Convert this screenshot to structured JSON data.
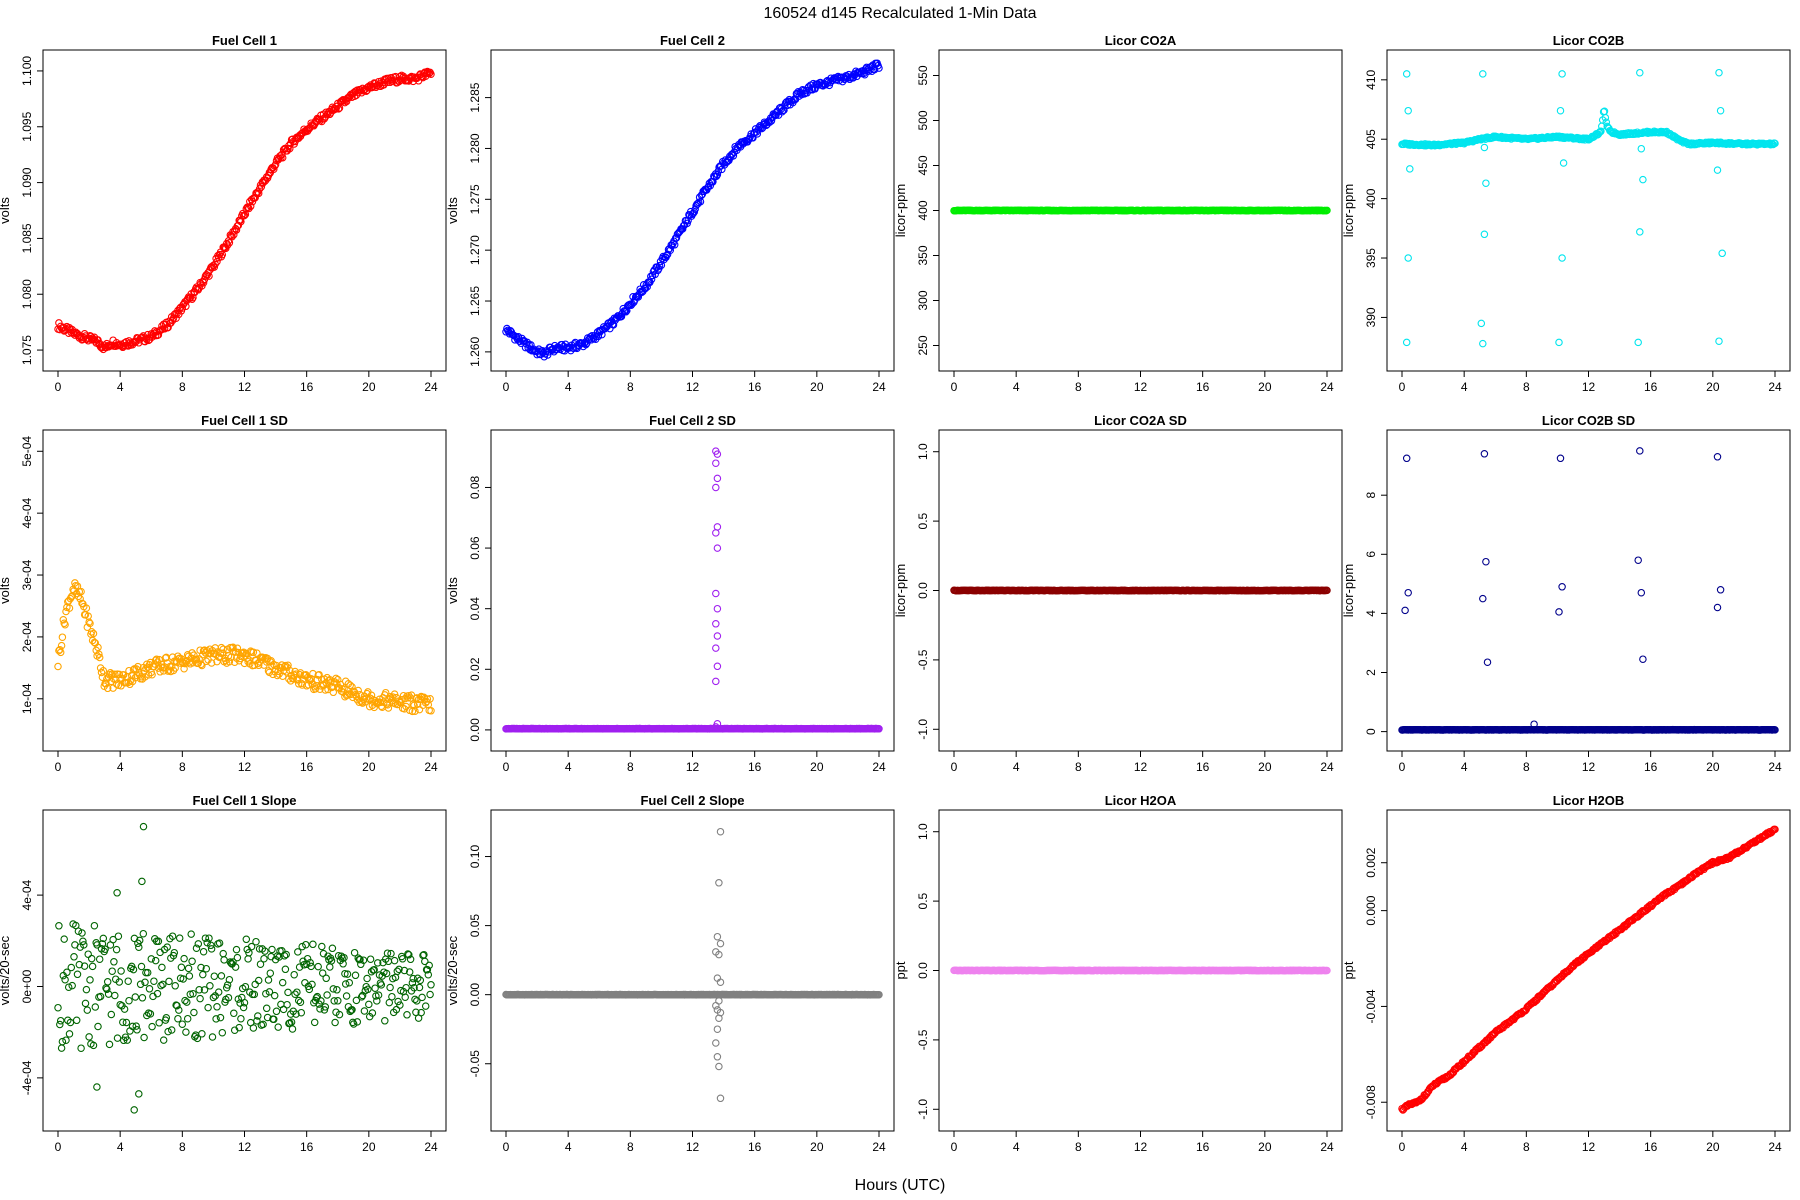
{
  "figure": {
    "title": "160524   d145   Recalculated 1-Min Data",
    "xlabel": "Hours (UTC)"
  },
  "chart_data": [
    {
      "type": "scatter",
      "title": "Fuel Cell 1",
      "ylabel": "volts",
      "color": "#ff0000",
      "xlim": [
        0,
        24
      ],
      "ylim": [
        1.0742,
        1.1008
      ],
      "xticks": [
        "0",
        "4",
        "8",
        "12",
        "16",
        "20",
        "24"
      ],
      "yticks": [
        "1.075",
        "1.080",
        "1.085",
        "1.090",
        "1.095",
        "1.100"
      ],
      "ytick_values": [
        1.075,
        1.08,
        1.085,
        1.09,
        1.095,
        1.1
      ],
      "series": [
        {
          "x": [
            0,
            1,
            2,
            2.5,
            3,
            3.5,
            4,
            5,
            6,
            7,
            8,
            9,
            10,
            11,
            12,
            13,
            14,
            15,
            16,
            17,
            18,
            19,
            20,
            21,
            22,
            23,
            23.5,
            24
          ],
          "y": [
            1.0772,
            1.0765,
            1.076,
            1.0758,
            1.0752,
            1.0757,
            1.0755,
            1.0758,
            1.0762,
            1.0772,
            1.0788,
            1.0805,
            1.0825,
            1.0848,
            1.0872,
            1.0895,
            1.0917,
            1.0935,
            1.0948,
            1.0958,
            1.0968,
            1.0978,
            1.0985,
            1.099,
            1.0993,
            1.0993,
            1.0996,
            1.0998
          ]
        }
      ]
    },
    {
      "type": "scatter",
      "title": "Fuel Cell 2",
      "ylabel": "volts",
      "color": "#0000ff",
      "xlim": [
        0,
        24
      ],
      "ylim": [
        1.2593,
        1.2885
      ],
      "xticks": [
        "0",
        "4",
        "8",
        "12",
        "16",
        "20",
        "24"
      ],
      "yticks": [
        "1.260",
        "1.265",
        "1.270",
        "1.275",
        "1.280",
        "1.285"
      ],
      "ytick_values": [
        1.26,
        1.265,
        1.27,
        1.275,
        1.28,
        1.285
      ],
      "series": [
        {
          "x": [
            0,
            1,
            2,
            2.5,
            3,
            3.5,
            4,
            5,
            6,
            7,
            8,
            9,
            10,
            11,
            12,
            13,
            14,
            15,
            16,
            17,
            18,
            19,
            20,
            21,
            22,
            23,
            24
          ],
          "y": [
            1.2622,
            1.261,
            1.26,
            1.2598,
            1.2603,
            1.2604,
            1.2604,
            1.2608,
            1.2618,
            1.263,
            1.2648,
            1.2665,
            1.2688,
            1.2712,
            1.2738,
            1.2762,
            1.2785,
            1.2803,
            1.2815,
            1.2828,
            1.2842,
            1.2855,
            1.2862,
            1.2866,
            1.287,
            1.2875,
            1.2882
          ]
        }
      ]
    },
    {
      "type": "scatter",
      "title": "Licor CO2A",
      "ylabel": "licor-ppm",
      "color": "#00ee00",
      "xlim": [
        0,
        24
      ],
      "ylim": [
        235,
        565
      ],
      "xticks": [
        "0",
        "4",
        "8",
        "12",
        "16",
        "20",
        "24"
      ],
      "yticks": [
        "250",
        "300",
        "350",
        "400",
        "450",
        "500",
        "550"
      ],
      "ytick_values": [
        250,
        300,
        350,
        400,
        450,
        500,
        550
      ],
      "series": [
        {
          "x": [
            0,
            24
          ],
          "y": [
            400,
            400
          ]
        }
      ]
    },
    {
      "type": "scatter",
      "title": "Licor CO2B",
      "ylabel": "licor-ppm",
      "color": "#00e5ee",
      "xlim": [
        0,
        24
      ],
      "ylim": [
        386.5,
        411.5
      ],
      "xticks": [
        "0",
        "4",
        "8",
        "12",
        "16",
        "20",
        "24"
      ],
      "yticks": [
        "390",
        "395",
        "400",
        "405",
        "410"
      ],
      "ytick_values": [
        390,
        395,
        400,
        405,
        410
      ],
      "series": [
        {
          "x": [
            0,
            2,
            4,
            5,
            6,
            8,
            10,
            12,
            12.8,
            13,
            13.2,
            13.5,
            14,
            16,
            17,
            18,
            18.5,
            20,
            22,
            24
          ],
          "y": [
            404.6,
            404.5,
            404.7,
            405.0,
            405.2,
            405.0,
            405.2,
            405.0,
            405.6,
            407.5,
            406.0,
            405.6,
            405.4,
            405.6,
            405.6,
            404.8,
            404.6,
            404.7,
            404.6,
            404.6
          ]
        }
      ],
      "outliers": {
        "x": [
          0.3,
          0.4,
          0.5,
          0.4,
          0.3,
          5.2,
          5.3,
          5.4,
          5.3,
          5.1,
          5.2,
          10.3,
          10.2,
          10.4,
          10.3,
          10.1,
          15.3,
          15.4,
          15.5,
          15.3,
          15.2,
          20.4,
          20.5,
          20.3,
          20.6,
          20.4
        ],
        "y": [
          410.5,
          407.4,
          402.5,
          395.0,
          387.9,
          410.5,
          404.3,
          401.3,
          397.0,
          389.5,
          387.8,
          410.5,
          407.4,
          403.0,
          395.0,
          387.9,
          410.6,
          404.2,
          401.6,
          397.2,
          387.9,
          410.6,
          407.4,
          402.4,
          395.4,
          388.0
        ]
      }
    },
    {
      "type": "scatter",
      "title": "Fuel Cell 1 SD",
      "ylabel": "volts",
      "color": "#ffa500",
      "xlim": [
        0,
        24
      ],
      "ylim": [
        3.5e-05,
        0.000515
      ],
      "xticks": [
        "0",
        "4",
        "8",
        "12",
        "16",
        "20",
        "24"
      ],
      "yticks": [
        "1e-04",
        "2e-04",
        "3e-04",
        "4e-04",
        "5e-04"
      ],
      "ytick_values": [
        0.0001,
        0.0002,
        0.0003,
        0.0004,
        0.0005
      ],
      "series": [
        {
          "x": [
            0,
            0.5,
            1,
            1.5,
            2,
            2.5,
            3,
            4,
            6,
            8,
            10,
            12,
            14,
            16,
            18,
            19,
            20,
            22,
            24
          ],
          "y": [
            0.00016,
            0.00024,
            0.00028,
            0.00026,
            0.00022,
            0.00018,
            0.00013,
            0.00013,
            0.00015,
            0.00016,
            0.00017,
            0.00017,
            0.00015,
            0.00013,
            0.00012,
            0.00011,
            0.0001,
            9.5e-05,
            9e-05
          ]
        }
      ]
    },
    {
      "type": "scatter",
      "title": "Fuel Cell 2 SD",
      "ylabel": "volts",
      "color": "#a020f0",
      "xlim": [
        0,
        24
      ],
      "ylim": [
        -0.003,
        0.095
      ],
      "xticks": [
        "0",
        "4",
        "8",
        "12",
        "16",
        "20",
        "24"
      ],
      "yticks": [
        "0.00",
        "0.02",
        "0.04",
        "0.06",
        "0.08"
      ],
      "ytick_values": [
        0.0,
        0.02,
        0.04,
        0.06,
        0.08
      ],
      "series": [
        {
          "x": [
            0,
            24
          ],
          "y": [
            0.0004,
            0.0004
          ]
        }
      ],
      "outliers": {
        "x": [
          13.5,
          13.6,
          13.5,
          13.6,
          13.5,
          13.6,
          13.5,
          13.6,
          13.5,
          13.6,
          13.5,
          13.6,
          13.5,
          13.6,
          13.5,
          13.6,
          13.5
        ],
        "y": [
          0.092,
          0.091,
          0.088,
          0.083,
          0.08,
          0.067,
          0.065,
          0.06,
          0.045,
          0.04,
          0.035,
          0.031,
          0.027,
          0.021,
          0.016,
          0.002,
          0.001
        ]
      }
    },
    {
      "type": "scatter",
      "title": "Licor CO2A SD",
      "ylabel": "licor-ppm",
      "color": "#8b0000",
      "xlim": [
        0,
        24
      ],
      "ylim": [
        -1.07,
        1.07
      ],
      "xticks": [
        "0",
        "4",
        "8",
        "12",
        "16",
        "20",
        "24"
      ],
      "yticks": [
        "-1.0",
        "-0.5",
        "0.0",
        "0.5",
        "1.0"
      ],
      "ytick_values": [
        -1.0,
        -0.5,
        0.0,
        0.5,
        1.0
      ],
      "series": [
        {
          "x": [
            0,
            24
          ],
          "y": [
            0,
            0
          ]
        }
      ]
    },
    {
      "type": "scatter",
      "title": "Licor CO2B SD",
      "ylabel": "licor-ppm",
      "color": "#00008b",
      "xlim": [
        0,
        24
      ],
      "ylim": [
        -0.25,
        9.8
      ],
      "xticks": [
        "0",
        "4",
        "8",
        "12",
        "16",
        "20",
        "24"
      ],
      "yticks": [
        "0",
        "2",
        "4",
        "6",
        "8"
      ],
      "ytick_values": [
        0,
        2,
        4,
        6,
        8
      ],
      "series": [
        {
          "x": [
            0,
            24
          ],
          "y": [
            0.06,
            0.06
          ]
        }
      ],
      "outliers": {
        "x": [
          0.3,
          0.4,
          0.2,
          5.3,
          5.2,
          5.4,
          5.5,
          10.2,
          10.3,
          10.1,
          8.5,
          15.3,
          15.4,
          15.2,
          15.5,
          20.3,
          20.5,
          20.3
        ],
        "y": [
          9.25,
          4.7,
          4.1,
          9.4,
          4.5,
          5.75,
          2.35,
          9.25,
          4.9,
          4.05,
          0.25,
          9.5,
          4.7,
          5.8,
          2.45,
          9.3,
          4.8,
          4.2
        ]
      }
    },
    {
      "type": "scatter",
      "title": "Fuel Cell 1 Slope",
      "ylabel": "volts/20-sec",
      "color": "#006400",
      "xlim": [
        0,
        24
      ],
      "ylim": [
        -0.00058,
        0.00072
      ],
      "xticks": [
        "0",
        "4",
        "8",
        "12",
        "16",
        "20",
        "24"
      ],
      "yticks": [
        "-4e-04",
        "0e+00",
        "4e-04"
      ],
      "ytick_values": [
        -0.0004,
        0.0,
        0.0004
      ],
      "series": [
        {
          "x": [
            0,
            24
          ],
          "y": [
            0,
            0
          ]
        }
      ],
      "outliers": {
        "x": [
          5.5,
          5.4,
          4.9,
          5.2,
          2.5,
          3.8
        ],
        "y": [
          0.0007,
          0.00046,
          -0.00054,
          -0.00047,
          -0.00044,
          0.00041
        ]
      }
    },
    {
      "type": "scatter",
      "title": "Fuel Cell 2 Slope",
      "ylabel": "volts/20-sec",
      "color": "#808080",
      "xlim": [
        0,
        24
      ],
      "ylim": [
        -0.09,
        0.125
      ],
      "xticks": [
        "0",
        "4",
        "8",
        "12",
        "16",
        "20",
        "24"
      ],
      "yticks": [
        "-0.05",
        "0.00",
        "0.05",
        "0.10"
      ],
      "ytick_values": [
        -0.05,
        0.0,
        0.05,
        0.1
      ],
      "series": [
        {
          "x": [
            0,
            24
          ],
          "y": [
            0,
            0
          ]
        }
      ],
      "outliers": {
        "x": [
          13.8,
          13.7,
          13.6,
          13.8,
          13.5,
          13.7,
          13.6,
          13.8,
          13.7,
          13.5,
          13.6,
          13.8,
          13.7,
          13.6,
          13.5,
          13.6,
          13.7,
          13.8
        ],
        "y": [
          0.118,
          0.081,
          0.042,
          0.037,
          0.031,
          0.029,
          0.012,
          0.009,
          -0.0045,
          -0.008,
          -0.011,
          -0.013,
          -0.017,
          -0.025,
          -0.035,
          -0.045,
          -0.052,
          -0.075
        ]
      }
    },
    {
      "type": "scatter",
      "title": "Licor H2OA",
      "ylabel": "ppt",
      "color": "#ee82ee",
      "xlim": [
        0,
        24
      ],
      "ylim": [
        -1.07,
        1.07
      ],
      "xticks": [
        "0",
        "4",
        "8",
        "12",
        "16",
        "20",
        "24"
      ],
      "yticks": [
        "-1.0",
        "-0.5",
        "0.0",
        "0.5",
        "1.0"
      ],
      "ytick_values": [
        -1.0,
        -0.5,
        0.0,
        0.5,
        1.0
      ],
      "series": [
        {
          "x": [
            0,
            24
          ],
          "y": [
            0,
            0
          ]
        }
      ]
    },
    {
      "type": "scatter",
      "title": "Licor H2OB",
      "ylabel": "ppt",
      "color": "#ff0000",
      "xlim": [
        0,
        24
      ],
      "ylim": [
        -0.0087,
        0.0037
      ],
      "xticks": [
        "0",
        "4",
        "8",
        "12",
        "16",
        "20",
        "24"
      ],
      "yticks": [
        "-0.008",
        "-0.004",
        "0.000",
        "0.002"
      ],
      "ytick_values": [
        -0.008,
        -0.004,
        0.0,
        0.002
      ],
      "series": [
        {
          "x": [
            0,
            0.5,
            1,
            1.5,
            2,
            3,
            4,
            5,
            6,
            7,
            8,
            9,
            10,
            11,
            12,
            13,
            14,
            15,
            16,
            17,
            18,
            19,
            20,
            21,
            22,
            23,
            24
          ],
          "y": [
            -0.0083,
            -0.0081,
            -0.008,
            -0.0077,
            -0.0073,
            -0.0069,
            -0.0063,
            -0.0057,
            -0.0051,
            -0.0046,
            -0.0041,
            -0.0035,
            -0.0029,
            -0.0023,
            -0.0018,
            -0.0013,
            -0.0008,
            -0.0003,
            0.0002,
            0.0007,
            0.0011,
            0.0016,
            0.002,
            0.0022,
            0.0026,
            0.003,
            0.0034
          ]
        }
      ]
    }
  ]
}
